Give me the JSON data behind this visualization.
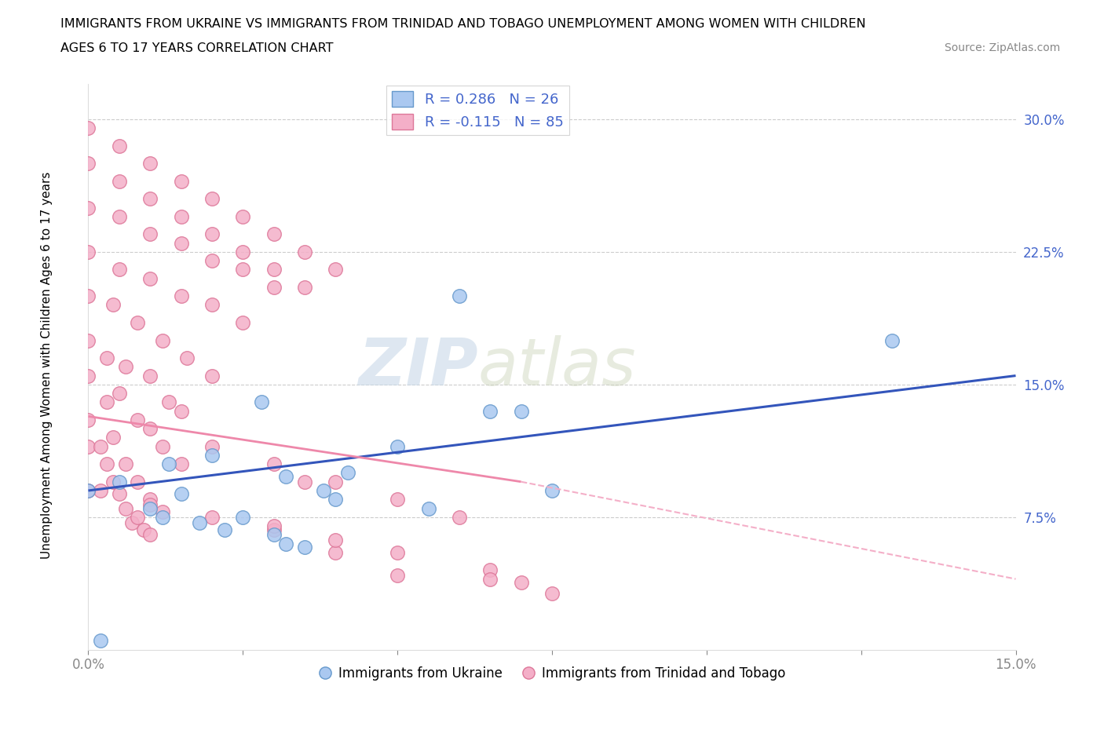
{
  "title_line1": "IMMIGRANTS FROM UKRAINE VS IMMIGRANTS FROM TRINIDAD AND TOBAGO UNEMPLOYMENT AMONG WOMEN WITH CHILDREN",
  "title_line2": "AGES 6 TO 17 YEARS CORRELATION CHART",
  "source": "Source: ZipAtlas.com",
  "ylabel": "Unemployment Among Women with Children Ages 6 to 17 years",
  "xlim": [
    0.0,
    0.15
  ],
  "ylim": [
    0.0,
    0.32
  ],
  "xtick_positions": [
    0.0,
    0.025,
    0.05,
    0.075,
    0.1,
    0.125,
    0.15
  ],
  "xtick_labels_shown": {
    "0.0": "0.0%",
    "0.15": "15.0%"
  },
  "ytick_positions": [
    0.075,
    0.15,
    0.225,
    0.3
  ],
  "ytick_labels": [
    "7.5%",
    "15.0%",
    "22.5%",
    "30.0%"
  ],
  "watermark_zip": "ZIP",
  "watermark_atlas": "atlas",
  "R_ukraine": 0.286,
  "N_ukraine": 26,
  "R_tt": -0.115,
  "N_tt": 85,
  "ukraine_color": "#aac8f0",
  "ukraine_edge_color": "#6699cc",
  "tt_color": "#f4afc8",
  "tt_edge_color": "#dd7799",
  "ukraine_line_color": "#3355bb",
  "tt_line_solid_color": "#ee88aa",
  "tt_line_dash_color": "#f4afc8",
  "legend_text_color": "#4466cc",
  "ukraine_line_y0": 0.09,
  "ukraine_line_y1": 0.155,
  "tt_line_y0": 0.132,
  "tt_line_y1_solid": 0.095,
  "tt_line_x1_solid": 0.07,
  "tt_line_y1_dash": 0.04,
  "ukraine_x": [
    0.002,
    0.0,
    0.005,
    0.013,
    0.01,
    0.015,
    0.012,
    0.018,
    0.022,
    0.025,
    0.02,
    0.03,
    0.028,
    0.035,
    0.032,
    0.038,
    0.04,
    0.042,
    0.05,
    0.06,
    0.07,
    0.075,
    0.065,
    0.055,
    0.13,
    0.032
  ],
  "ukraine_y": [
    0.005,
    0.09,
    0.095,
    0.105,
    0.08,
    0.088,
    0.075,
    0.072,
    0.068,
    0.075,
    0.11,
    0.065,
    0.14,
    0.058,
    0.098,
    0.09,
    0.085,
    0.1,
    0.115,
    0.2,
    0.135,
    0.09,
    0.135,
    0.08,
    0.175,
    0.06
  ],
  "tt_x": [
    0.0,
    0.002,
    0.003,
    0.004,
    0.005,
    0.006,
    0.007,
    0.008,
    0.009,
    0.01,
    0.0,
    0.002,
    0.004,
    0.006,
    0.008,
    0.01,
    0.012,
    0.0,
    0.003,
    0.005,
    0.008,
    0.01,
    0.012,
    0.015,
    0.0,
    0.003,
    0.006,
    0.01,
    0.013,
    0.015,
    0.0,
    0.004,
    0.008,
    0.012,
    0.016,
    0.02,
    0.0,
    0.005,
    0.01,
    0.015,
    0.02,
    0.025,
    0.0,
    0.005,
    0.01,
    0.015,
    0.02,
    0.025,
    0.03,
    0.0,
    0.005,
    0.01,
    0.015,
    0.02,
    0.025,
    0.03,
    0.035,
    0.0,
    0.005,
    0.01,
    0.015,
    0.02,
    0.025,
    0.03,
    0.035,
    0.04,
    0.0,
    0.01,
    0.02,
    0.03,
    0.04,
    0.05,
    0.02,
    0.03,
    0.04,
    0.05,
    0.06,
    0.03,
    0.04,
    0.05,
    0.065,
    0.07,
    0.035,
    0.065,
    0.075
  ],
  "tt_y": [
    0.115,
    0.09,
    0.105,
    0.095,
    0.088,
    0.08,
    0.072,
    0.075,
    0.068,
    0.065,
    0.13,
    0.115,
    0.12,
    0.105,
    0.095,
    0.085,
    0.078,
    0.155,
    0.14,
    0.145,
    0.13,
    0.125,
    0.115,
    0.105,
    0.175,
    0.165,
    0.16,
    0.155,
    0.14,
    0.135,
    0.2,
    0.195,
    0.185,
    0.175,
    0.165,
    0.155,
    0.225,
    0.215,
    0.21,
    0.2,
    0.195,
    0.185,
    0.25,
    0.245,
    0.235,
    0.23,
    0.22,
    0.215,
    0.205,
    0.275,
    0.265,
    0.255,
    0.245,
    0.235,
    0.225,
    0.215,
    0.205,
    0.295,
    0.285,
    0.275,
    0.265,
    0.255,
    0.245,
    0.235,
    0.225,
    0.215,
    0.09,
    0.082,
    0.075,
    0.068,
    0.055,
    0.042,
    0.115,
    0.105,
    0.095,
    0.085,
    0.075,
    0.07,
    0.062,
    0.055,
    0.045,
    0.038,
    0.095,
    0.04,
    0.032
  ]
}
